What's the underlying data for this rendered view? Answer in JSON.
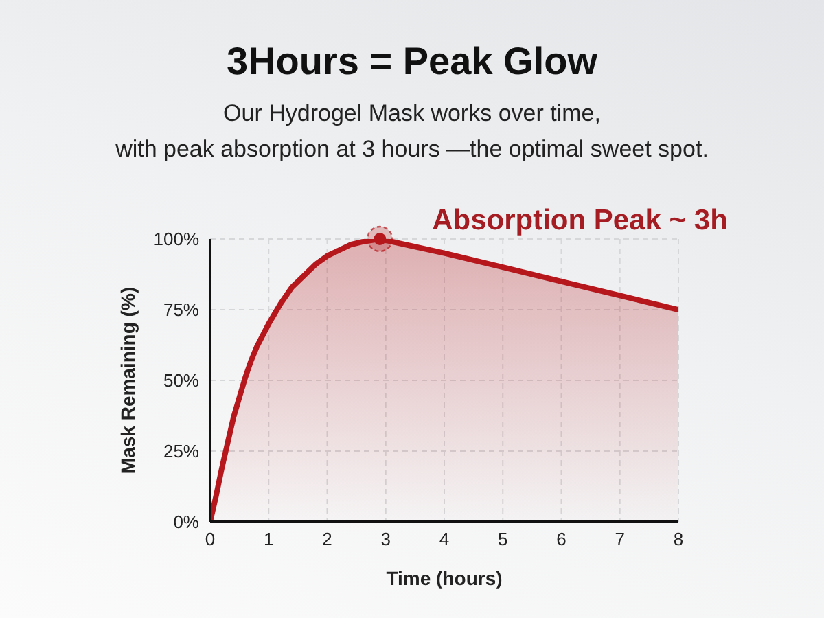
{
  "chart_data": {
    "type": "area",
    "title": "3Hours = Peak Glow",
    "subtitle": "Our Hydrogel Mask works over time,\nwith peak absorption at 3 hours —the optimal sweet spot.",
    "xlabel": "Time (hours)",
    "ylabel": "Mask Remaining (%)",
    "x": [
      0,
      0.1,
      0.2,
      0.3,
      0.4,
      0.5,
      0.6,
      0.7,
      0.8,
      0.9,
      1,
      1.2,
      1.4,
      1.6,
      1.8,
      2,
      2.2,
      2.4,
      2.6,
      2.9,
      4,
      5,
      6,
      7,
      8
    ],
    "values": [
      0,
      9,
      19,
      28,
      37,
      44,
      51,
      57,
      62,
      66,
      70,
      77,
      83,
      87,
      91,
      94,
      96,
      98,
      99,
      100,
      95,
      90,
      85,
      80,
      75
    ],
    "color": "#b5171d",
    "xlim": [
      0,
      8
    ],
    "xticks": [
      0,
      1,
      2,
      3,
      4,
      5,
      6,
      7,
      8
    ],
    "ylim": [
      0,
      100
    ],
    "yticks": [
      {
        "value": 0,
        "label": "0%"
      },
      {
        "value": 25,
        "label": "25%"
      },
      {
        "value": 50,
        "label": "50%"
      },
      {
        "value": 75,
        "label": "75%"
      },
      {
        "value": 100,
        "label": "100%"
      }
    ],
    "grid": true,
    "annotations": [
      {
        "text": "Absorption Peak ~ 3h",
        "x": 2.9,
        "y": 100
      }
    ]
  }
}
